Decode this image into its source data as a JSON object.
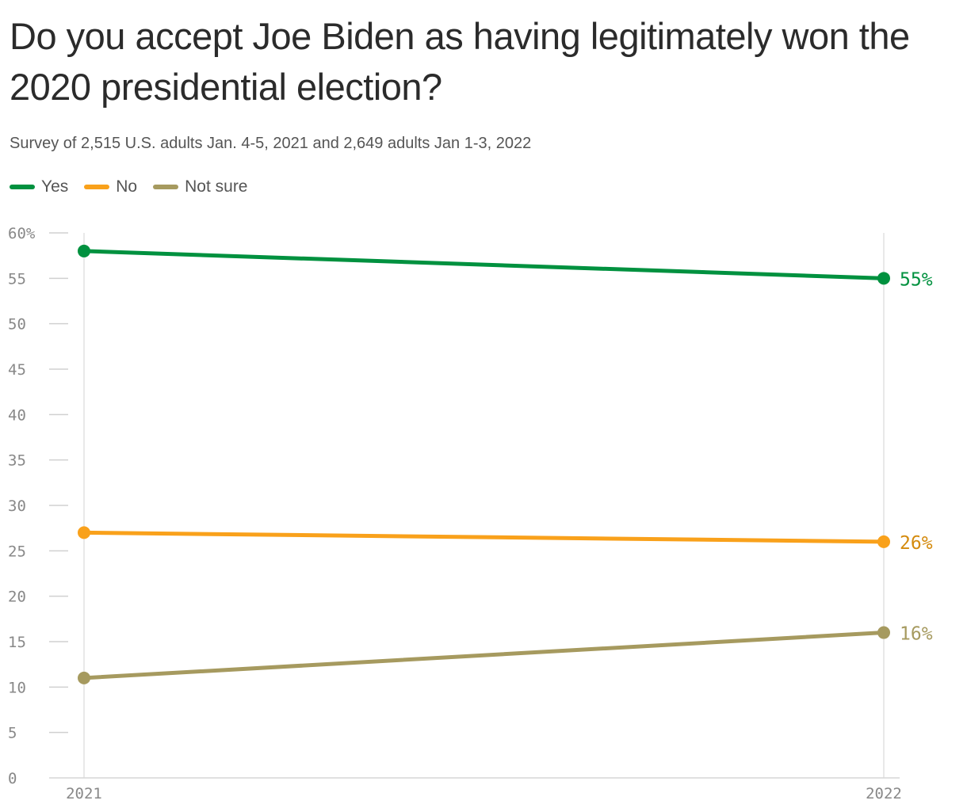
{
  "chart_data": {
    "type": "line",
    "title": "Do you accept Joe Biden as having legitimately won the 2020 presidential election?",
    "subtitle": "Survey of 2,515 U.S. adults Jan. 4-5, 2021 and 2,649 adults Jan 1-3, 2022",
    "x": [
      "2021",
      "2022"
    ],
    "ylim": [
      0,
      60
    ],
    "y_ticks": [
      "60%",
      "55",
      "50",
      "45",
      "40",
      "35",
      "30",
      "25",
      "20",
      "15",
      "10",
      "5",
      "0"
    ],
    "grid": false,
    "legend_position": "top-left",
    "series": [
      {
        "name": "Yes",
        "values": [
          58,
          55
        ],
        "end_label": "55%",
        "color": "#00913f"
      },
      {
        "name": "No",
        "values": [
          27,
          26
        ],
        "end_label": "26%",
        "color": "#f9a11b",
        "label_color": "#d48a0c"
      },
      {
        "name": "Not sure",
        "values": [
          11,
          16
        ],
        "end_label": "16%",
        "color": "#a69a5f"
      }
    ]
  }
}
